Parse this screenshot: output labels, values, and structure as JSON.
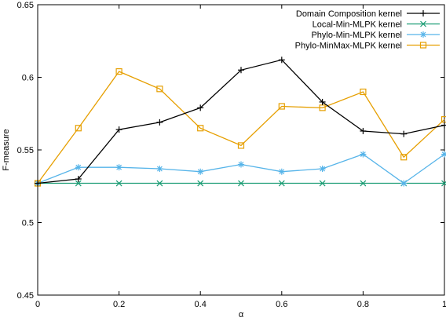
{
  "chart_data": {
    "type": "line",
    "title": "",
    "xlabel": "α",
    "ylabel": "F-measure",
    "xlim": [
      0,
      1
    ],
    "ylim": [
      0.45,
      0.65
    ],
    "x_ticks": [
      0,
      0.2,
      0.4,
      0.6,
      0.8,
      1
    ],
    "x_tick_labels": [
      "0",
      "0.2",
      "0.4",
      "0.6",
      "0.8",
      "1"
    ],
    "y_ticks": [
      0.45,
      0.5,
      0.55,
      0.6,
      0.65
    ],
    "y_tick_labels": [
      "0.45",
      "0.5",
      "0.55",
      "0.6",
      "0.65"
    ],
    "grid": false,
    "legend_position": "top-right",
    "x": [
      0,
      0.1,
      0.2,
      0.3,
      0.4,
      0.5,
      0.6,
      0.7,
      0.8,
      0.9,
      1.0
    ],
    "series": [
      {
        "name": "Domain Composition kernel",
        "color": "#000000",
        "marker": "plus",
        "values": [
          0.527,
          0.53,
          0.564,
          0.569,
          0.579,
          0.605,
          0.612,
          0.583,
          0.563,
          0.561,
          0.567
        ]
      },
      {
        "name": "Local-Min-MLPK kernel",
        "color": "#1a9c73",
        "marker": "cross",
        "values": [
          0.527,
          0.527,
          0.527,
          0.527,
          0.527,
          0.527,
          0.527,
          0.527,
          0.527,
          0.527,
          0.527
        ]
      },
      {
        "name": "Phylo-Min-MLPK kernel",
        "color": "#56b4e9",
        "marker": "star",
        "values": [
          0.527,
          0.538,
          0.538,
          0.537,
          0.535,
          0.54,
          0.535,
          0.537,
          0.547,
          0.527,
          0.547
        ]
      },
      {
        "name": "Phylo-MinMax-MLPK kernel",
        "color": "#e69f00",
        "marker": "square",
        "values": [
          0.527,
          0.565,
          0.604,
          0.592,
          0.565,
          0.553,
          0.58,
          0.579,
          0.59,
          0.545,
          0.571
        ]
      }
    ]
  }
}
